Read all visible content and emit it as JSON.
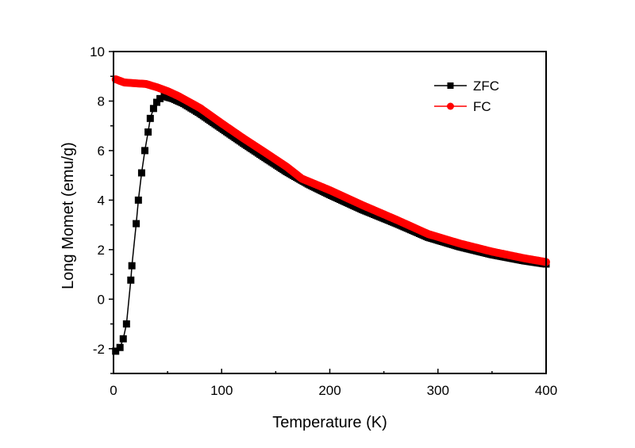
{
  "chart_data": {
    "type": "line",
    "title": "",
    "xlabel": "Temperature (K)",
    "ylabel": "Long Momet (emu/g)",
    "xlim": [
      0,
      400
    ],
    "ylim": [
      -3,
      10
    ],
    "xticks": [
      0,
      100,
      200,
      300,
      400
    ],
    "xtick_labels": [
      "0",
      "100",
      "200",
      "300",
      "400"
    ],
    "yticks": [
      -2,
      0,
      2,
      4,
      6,
      8,
      10
    ],
    "ytick_labels": [
      "-2",
      "0",
      "2",
      "4",
      "6",
      "8",
      "10"
    ],
    "grid": false,
    "legend_position": "top-right",
    "series": [
      {
        "name": "ZFC",
        "color": "#000000",
        "marker": "square",
        "x": [
          2,
          6,
          9,
          12,
          16,
          17,
          21,
          23,
          26,
          29,
          32,
          34,
          37,
          40,
          43,
          47,
          55,
          65,
          80,
          100,
          120,
          140,
          160,
          180,
          200,
          230,
          262,
          291,
          320,
          350,
          380,
          400
        ],
        "y": [
          -2.1,
          -1.95,
          -1.6,
          -1.0,
          0.77,
          1.35,
          3.05,
          4.0,
          5.1,
          6.0,
          6.75,
          7.3,
          7.7,
          7.95,
          8.1,
          8.2,
          8.1,
          7.9,
          7.5,
          6.9,
          6.3,
          5.72,
          5.15,
          4.65,
          4.22,
          3.62,
          3.05,
          2.5,
          2.12,
          1.8,
          1.55,
          1.42
        ]
      },
      {
        "name": "FC",
        "color": "#ff0000",
        "marker": "circle",
        "x": [
          2,
          10,
          20,
          30,
          40,
          50,
          60,
          80,
          100,
          120,
          140,
          160,
          174,
          200,
          230,
          262,
          291,
          320,
          350,
          380,
          400
        ],
        "y": [
          8.88,
          8.75,
          8.72,
          8.69,
          8.56,
          8.4,
          8.2,
          7.72,
          7.1,
          6.5,
          5.93,
          5.35,
          4.87,
          4.4,
          3.8,
          3.2,
          2.63,
          2.25,
          1.92,
          1.65,
          1.5
        ]
      }
    ]
  }
}
